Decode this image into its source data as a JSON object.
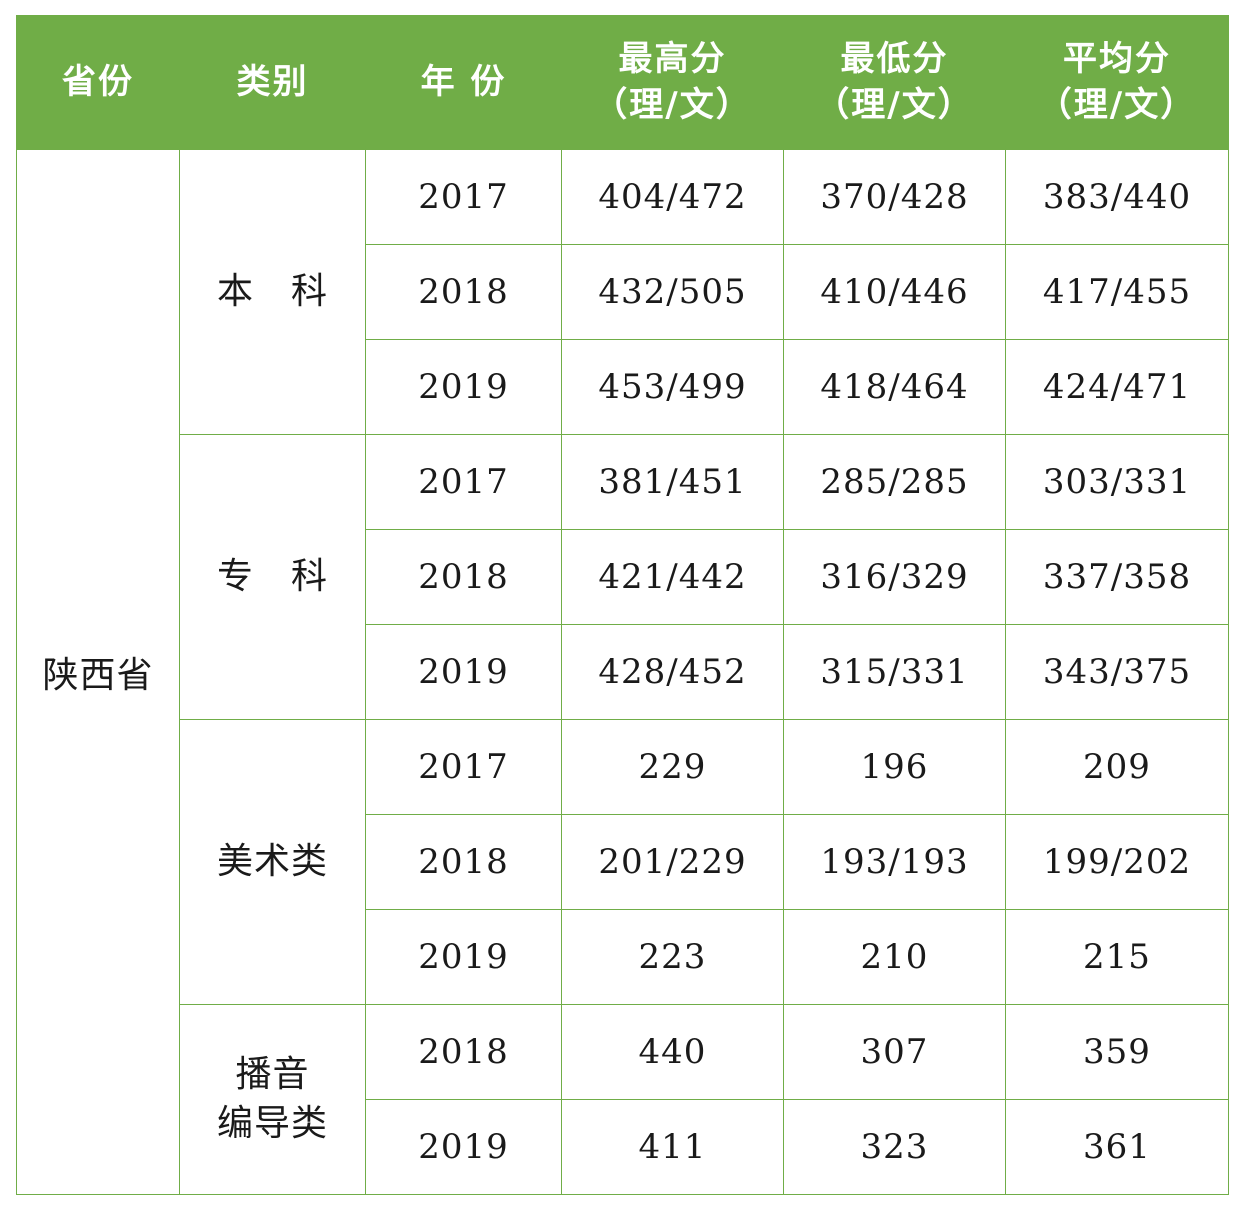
{
  "header": {
    "province": "省份",
    "category": "类别",
    "year": "年 份",
    "max_score": "最高分",
    "min_score": "最低分",
    "avg_score": "平均分",
    "subtype": "（理/文）"
  },
  "province": "陕西省",
  "groups": [
    {
      "category": "本　科",
      "rows": [
        {
          "year": "2017",
          "max": "404/472",
          "min": "370/428",
          "avg": "383/440"
        },
        {
          "year": "2018",
          "max": "432/505",
          "min": "410/446",
          "avg": "417/455"
        },
        {
          "year": "2019",
          "max": "453/499",
          "min": "418/464",
          "avg": "424/471"
        }
      ]
    },
    {
      "category": "专　科",
      "rows": [
        {
          "year": "2017",
          "max": "381/451",
          "min": "285/285",
          "avg": "303/331"
        },
        {
          "year": "2018",
          "max": "421/442",
          "min": "316/329",
          "avg": "337/358"
        },
        {
          "year": "2019",
          "max": "428/452",
          "min": "315/331",
          "avg": "343/375"
        }
      ]
    },
    {
      "category": "美术类",
      "rows": [
        {
          "year": "2017",
          "max": "229",
          "min": "196",
          "avg": "209"
        },
        {
          "year": "2018",
          "max": "201/229",
          "min": "193/193",
          "avg": "199/202"
        },
        {
          "year": "2019",
          "max": "223",
          "min": "210",
          "avg": "215"
        }
      ]
    },
    {
      "category_lines": [
        "播音",
        "编导类"
      ],
      "rows": [
        {
          "year": "2018",
          "max": "440",
          "min": "307",
          "avg": "359"
        },
        {
          "year": "2019",
          "max": "411",
          "min": "323",
          "avg": "361"
        }
      ]
    }
  ],
  "colors": {
    "header_background": "#70ad47",
    "border": "#70ad47",
    "header_text": "#ffffff"
  }
}
